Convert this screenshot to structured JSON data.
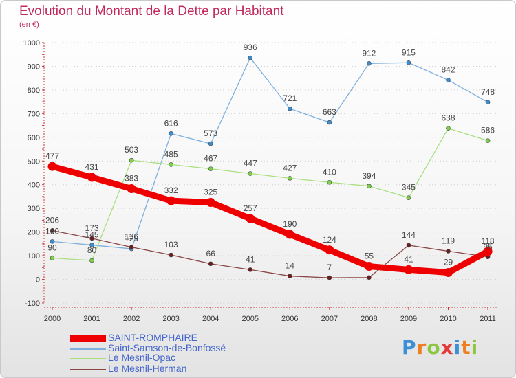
{
  "header": {
    "title": "Evolution du Montant de la Dette par Habitant",
    "subtitle": "(en €)"
  },
  "colors": {
    "title": "#c22a5c",
    "legend_text": "#4466cc",
    "axis_labels": "#333333",
    "grid": "#d0d0d0"
  },
  "chart_data": {
    "type": "line",
    "title": "Evolution du Montant de la Dette par Habitant",
    "subtitle": "(en €)",
    "xlabel": "",
    "ylabel": "",
    "x": [
      "2000",
      "2001",
      "2002",
      "2003",
      "2004",
      "2005",
      "2006",
      "2007",
      "2008",
      "2009",
      "2010",
      "2011"
    ],
    "y_ticks": [
      "1000",
      "900",
      "800",
      "700",
      "600",
      "500",
      "400",
      "300",
      "200",
      "100",
      "0",
      "-100"
    ],
    "ylim": [
      -100,
      1000
    ],
    "grid": "horizontal dotted",
    "legend_position": "bottom-left",
    "series": [
      {
        "name": "SAINT-ROMPHAIRE",
        "color": "#ee0000",
        "line_color": "#ee0000",
        "values": [
          477,
          431,
          383,
          332,
          325,
          257,
          190,
          124,
          55,
          41,
          29,
          118
        ]
      },
      {
        "name": "Saint-Samson-de-Bonfossé",
        "color": "#3d8ed1",
        "line_color": "#7fb0dd",
        "values": [
          160,
          145,
          129,
          616,
          573,
          936,
          721,
          663,
          912,
          915,
          842,
          748
        ]
      },
      {
        "name": "Le Mesnil-Opac",
        "color": "#7ed24a",
        "line_color": "#a8e080",
        "values": [
          90,
          80,
          503,
          485,
          467,
          447,
          427,
          410,
          394,
          345,
          638,
          586
        ]
      },
      {
        "name": "Le Mesnil-Herman",
        "color": "#6a1e1e",
        "line_color": "#8a4646",
        "values": [
          206,
          173,
          136,
          103,
          66,
          41,
          14,
          7,
          8,
          144,
          119,
          95
        ]
      }
    ],
    "data_labels": [
      [
        "477",
        "431",
        "383",
        "332",
        "325",
        "257",
        "190",
        "124",
        "55",
        "41",
        "29",
        "118"
      ],
      [
        "160",
        "145",
        "129",
        "616",
        "573",
        "936",
        "721",
        "663",
        "912",
        "915",
        "842",
        "748"
      ],
      [
        "90",
        "80",
        "503",
        "485",
        "467",
        "447",
        "427",
        "410",
        "394",
        "345",
        "638",
        "586"
      ],
      [
        "206",
        "173",
        "136",
        "103",
        "66",
        "41",
        "14",
        "7",
        "",
        "144",
        "119",
        "95"
      ]
    ]
  },
  "logo": {
    "text": "Proxiti",
    "letter_colors": [
      "#3b8fd6",
      "#ef7d22",
      "#8cc63f",
      "#e33b3b",
      "#3b8fd6",
      "#ef7d22",
      "#8cc63f"
    ]
  }
}
